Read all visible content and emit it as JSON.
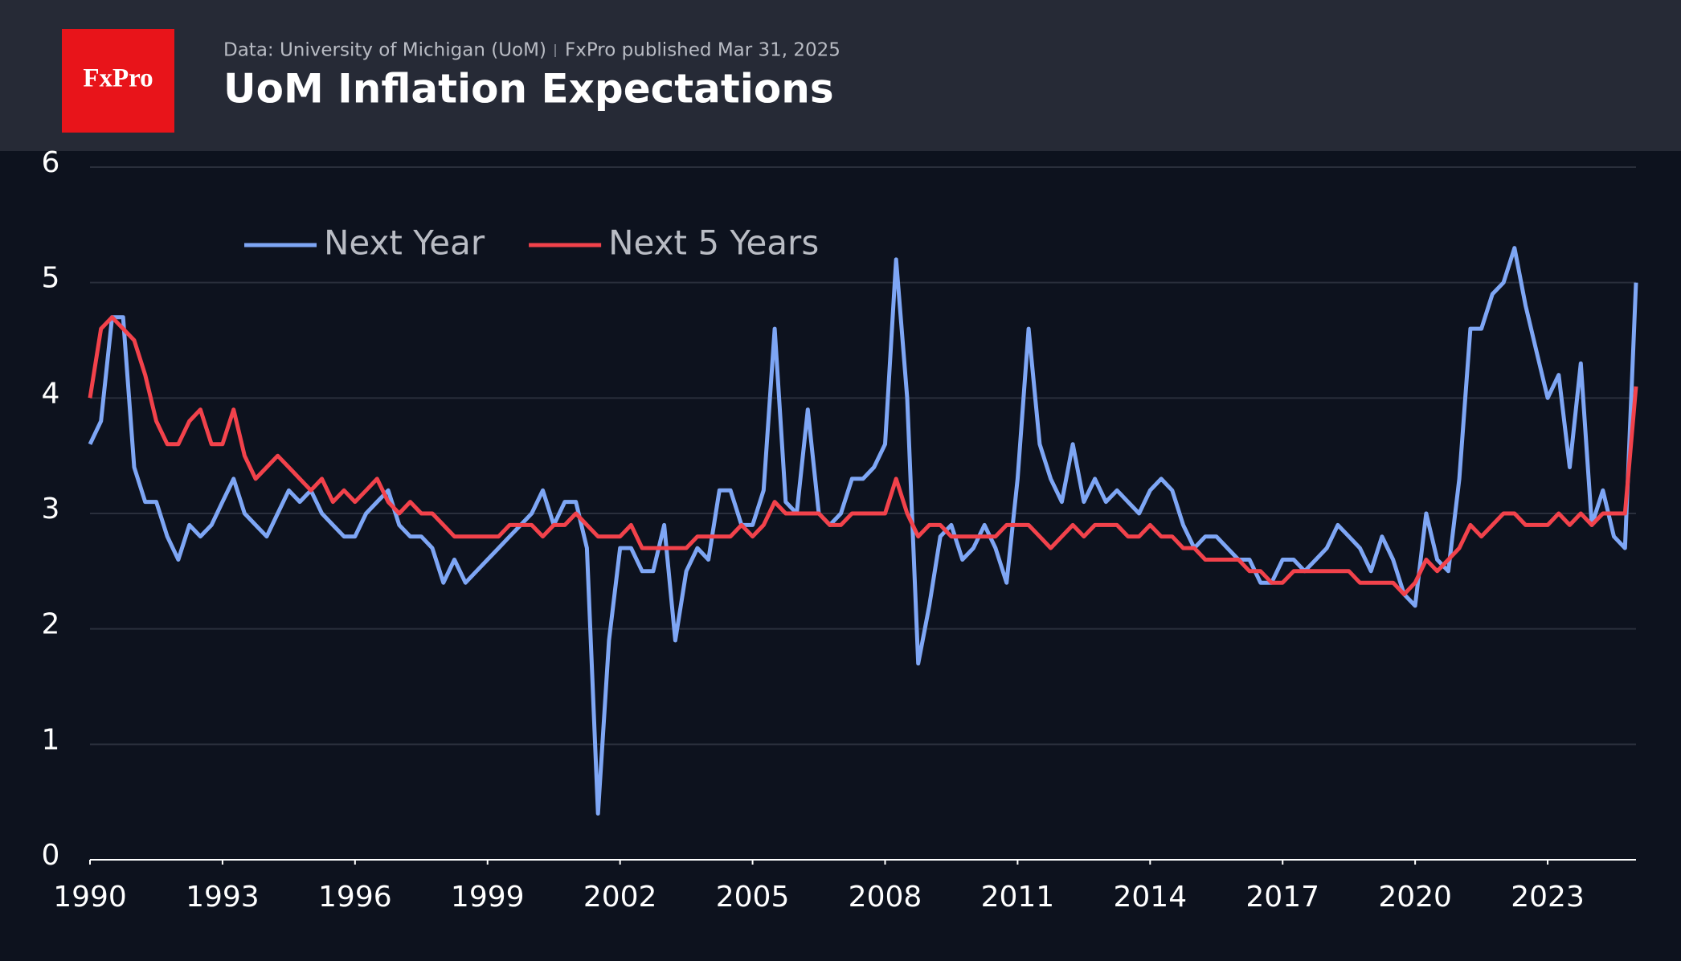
{
  "header": {
    "logo": "FxPro",
    "source": "Data: University of Michigan (UoM)",
    "published": "FxPro published Mar 31, 2025"
  },
  "chart_data": {
    "type": "line",
    "title": "UoM Inflation Expectations",
    "x": [
      1990,
      1990.25,
      1990.5,
      1990.75,
      1991,
      1991.25,
      1991.5,
      1991.75,
      1992,
      1992.25,
      1992.5,
      1992.75,
      1993,
      1993.25,
      1993.5,
      1993.75,
      1994,
      1994.25,
      1994.5,
      1994.75,
      1995,
      1995.25,
      1995.5,
      1995.75,
      1996,
      1996.25,
      1996.5,
      1996.75,
      1997,
      1997.25,
      1997.5,
      1997.75,
      1998,
      1998.25,
      1998.5,
      1998.75,
      1999,
      1999.25,
      1999.5,
      1999.75,
      2000,
      2000.25,
      2000.5,
      2000.75,
      2001,
      2001.25,
      2001.5,
      2001.75,
      2002,
      2002.25,
      2002.5,
      2002.75,
      2003,
      2003.25,
      2003.5,
      2003.75,
      2004,
      2004.25,
      2004.5,
      2004.75,
      2005,
      2005.25,
      2005.5,
      2005.75,
      2006,
      2006.25,
      2006.5,
      2006.75,
      2007,
      2007.25,
      2007.5,
      2007.75,
      2008,
      2008.25,
      2008.5,
      2008.75,
      2009,
      2009.25,
      2009.5,
      2009.75,
      2010,
      2010.25,
      2010.5,
      2010.75,
      2011,
      2011.25,
      2011.5,
      2011.75,
      2012,
      2012.25,
      2012.5,
      2012.75,
      2013,
      2013.25,
      2013.5,
      2013.75,
      2014,
      2014.25,
      2014.5,
      2014.75,
      2015,
      2015.25,
      2015.5,
      2015.75,
      2016,
      2016.25,
      2016.5,
      2016.75,
      2017,
      2017.25,
      2017.5,
      2017.75,
      2018,
      2018.25,
      2018.5,
      2018.75,
      2019,
      2019.25,
      2019.5,
      2019.75,
      2020,
      2020.25,
      2020.5,
      2020.75,
      2021,
      2021.25,
      2021.5,
      2021.75,
      2022,
      2022.25,
      2022.5,
      2022.75,
      2023,
      2023.25,
      2023.5,
      2023.75,
      2024,
      2024.25,
      2024.5,
      2024.75,
      2025
    ],
    "series": [
      {
        "name": "Next Year",
        "color": "#7ea6f5",
        "values": [
          3.6,
          3.8,
          4.7,
          4.7,
          3.4,
          3.1,
          3.1,
          2.8,
          2.6,
          2.9,
          2.8,
          2.9,
          3.1,
          3.3,
          3.0,
          2.9,
          2.8,
          3.0,
          3.2,
          3.1,
          3.2,
          3.0,
          2.9,
          2.8,
          2.8,
          3.0,
          3.1,
          3.2,
          2.9,
          2.8,
          2.8,
          2.7,
          2.4,
          2.6,
          2.4,
          2.5,
          2.6,
          2.7,
          2.8,
          2.9,
          3.0,
          3.2,
          2.9,
          3.1,
          3.1,
          2.7,
          0.4,
          1.9,
          2.7,
          2.7,
          2.5,
          2.5,
          2.9,
          1.9,
          2.5,
          2.7,
          2.6,
          3.2,
          3.2,
          2.9,
          2.9,
          3.2,
          4.6,
          3.1,
          3.0,
          3.9,
          3.0,
          2.9,
          3.0,
          3.3,
          3.3,
          3.4,
          3.6,
          5.2,
          4.0,
          1.7,
          2.2,
          2.8,
          2.9,
          2.6,
          2.7,
          2.9,
          2.7,
          2.4,
          3.3,
          4.6,
          3.6,
          3.3,
          3.1,
          3.6,
          3.1,
          3.3,
          3.1,
          3.2,
          3.1,
          3.0,
          3.2,
          3.3,
          3.2,
          2.9,
          2.7,
          2.8,
          2.8,
          2.7,
          2.6,
          2.6,
          2.4,
          2.4,
          2.6,
          2.6,
          2.5,
          2.6,
          2.7,
          2.9,
          2.8,
          2.7,
          2.5,
          2.8,
          2.6,
          2.3,
          2.2,
          3.0,
          2.6,
          2.5,
          3.3,
          4.6,
          4.6,
          4.9,
          5.0,
          5.3,
          4.8,
          4.4,
          4.0,
          4.2,
          3.4,
          4.3,
          2.9,
          3.2,
          2.8,
          2.7,
          5.0
        ]
      },
      {
        "name": "Next 5 Years",
        "color": "#f2424b",
        "values": [
          4.0,
          4.6,
          4.7,
          4.6,
          4.5,
          4.2,
          3.8,
          3.6,
          3.6,
          3.8,
          3.9,
          3.6,
          3.6,
          3.9,
          3.5,
          3.3,
          3.4,
          3.5,
          3.4,
          3.3,
          3.2,
          3.3,
          3.1,
          3.2,
          3.1,
          3.2,
          3.3,
          3.1,
          3.0,
          3.1,
          3.0,
          3.0,
          2.9,
          2.8,
          2.8,
          2.8,
          2.8,
          2.8,
          2.9,
          2.9,
          2.9,
          2.8,
          2.9,
          2.9,
          3.0,
          2.9,
          2.8,
          2.8,
          2.8,
          2.9,
          2.7,
          2.7,
          2.7,
          2.7,
          2.7,
          2.8,
          2.8,
          2.8,
          2.8,
          2.9,
          2.8,
          2.9,
          3.1,
          3.0,
          3.0,
          3.0,
          3.0,
          2.9,
          2.9,
          3.0,
          3.0,
          3.0,
          3.0,
          3.3,
          3.0,
          2.8,
          2.9,
          2.9,
          2.8,
          2.8,
          2.8,
          2.8,
          2.8,
          2.9,
          2.9,
          2.9,
          2.8,
          2.7,
          2.8,
          2.9,
          2.8,
          2.9,
          2.9,
          2.9,
          2.8,
          2.8,
          2.9,
          2.8,
          2.8,
          2.7,
          2.7,
          2.6,
          2.6,
          2.6,
          2.6,
          2.5,
          2.5,
          2.4,
          2.4,
          2.5,
          2.5,
          2.5,
          2.5,
          2.5,
          2.5,
          2.4,
          2.4,
          2.4,
          2.4,
          2.3,
          2.4,
          2.6,
          2.5,
          2.6,
          2.7,
          2.9,
          2.8,
          2.9,
          3.0,
          3.0,
          2.9,
          2.9,
          2.9,
          3.0,
          2.9,
          3.0,
          2.9,
          3.0,
          3.0,
          3.0,
          4.1
        ]
      }
    ],
    "xlim": [
      1990,
      2025
    ],
    "xticks": [
      1990,
      1993,
      1996,
      1999,
      2002,
      2005,
      2008,
      2011,
      2014,
      2017,
      2020,
      2023
    ],
    "ylim": [
      0,
      6
    ],
    "yticks": [
      0,
      1,
      2,
      3,
      4,
      5,
      6
    ],
    "grid": true,
    "legend": "top-left"
  }
}
